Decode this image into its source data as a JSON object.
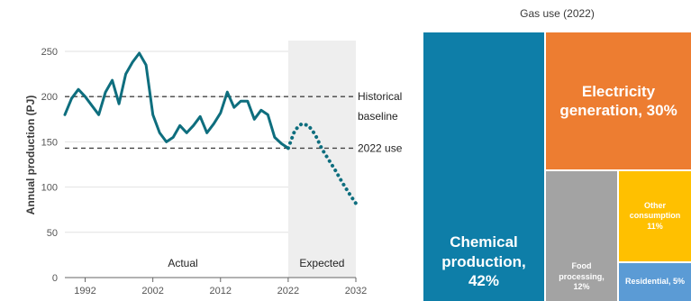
{
  "colors": {
    "line": "#0e6e7e",
    "grid": "#e2e2e2",
    "shade": "#eeeeee",
    "axis": "#666666",
    "chemical": "#0e7ea8",
    "electricity": "#ed7d31",
    "food": "#a3a3a3",
    "other": "#ffc000",
    "residential": "#5b9bd5"
  },
  "chart_data": [
    {
      "type": "line",
      "ylabel": "Annual production (PJ)",
      "xlabel": "",
      "ylim": [
        0,
        250
      ],
      "xlim": [
        1989,
        2032
      ],
      "y_ticks": [
        "0",
        "50",
        "100",
        "150",
        "200",
        "250"
      ],
      "x_ticks": [
        "1992",
        "2002",
        "2012",
        "2022",
        "2032"
      ],
      "grid": true,
      "shaded_region": {
        "from": 2022,
        "to": 2032,
        "label": "Expected"
      },
      "region_labels": {
        "actual": "Actual",
        "expected": "Expected"
      },
      "reference_lines": [
        {
          "label": "Historical baseline",
          "value": 200
        },
        {
          "label": "2022 use",
          "value": 143
        }
      ],
      "series": [
        {
          "style": "solid",
          "x": [
            1989,
            1990,
            1991,
            1992,
            1993,
            1994,
            1995,
            1996,
            1997,
            1998,
            1999,
            2000,
            2001,
            2002,
            2003,
            2004,
            2005,
            2006,
            2007,
            2008,
            2009,
            2010,
            2011,
            2012,
            2013,
            2014,
            2015,
            2016,
            2017,
            2018,
            2019,
            2020,
            2021,
            2022
          ],
          "y": [
            180,
            198,
            208,
            200,
            190,
            180,
            205,
            218,
            192,
            225,
            238,
            248,
            235,
            180,
            160,
            150,
            155,
            168,
            160,
            168,
            178,
            160,
            170,
            182,
            205,
            188,
            195,
            195,
            175,
            185,
            180,
            155,
            148,
            143
          ]
        },
        {
          "style": "dotted",
          "x": [
            2022,
            2023,
            2024,
            2025,
            2026,
            2027,
            2028,
            2029,
            2030,
            2031,
            2032
          ],
          "y": [
            143,
            163,
            170,
            168,
            158,
            142,
            130,
            118,
            105,
            93,
            82
          ]
        }
      ]
    },
    {
      "type": "treemap",
      "title": "Gas use (2022)",
      "cells": [
        {
          "key": "chemical",
          "label": "Chemical\nproduction,\n42%",
          "value": 42
        },
        {
          "key": "electricity",
          "label": "Electricity\ngeneration, 30%",
          "value": 30
        },
        {
          "key": "food",
          "label": "Food\nprocessing,\n12%",
          "value": 12
        },
        {
          "key": "other",
          "label": "Other\nconsumption\n11%",
          "value": 11
        },
        {
          "key": "residential",
          "label": "Residential, 5%",
          "value": 5
        }
      ]
    }
  ]
}
